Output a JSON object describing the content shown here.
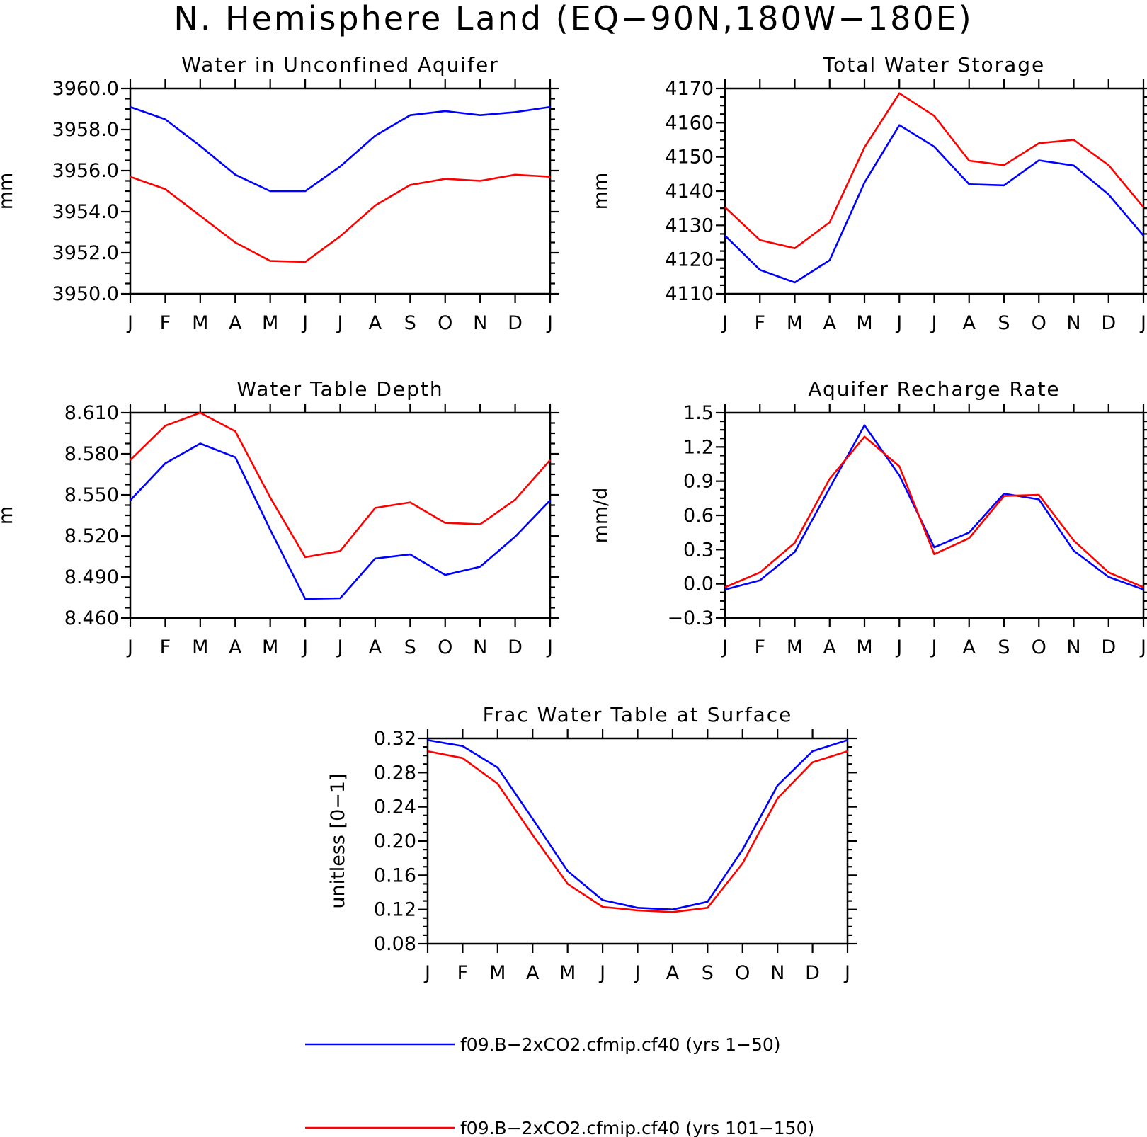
{
  "figure": {
    "title": "N. Hemisphere Land (EQ−90N,180W−180E)"
  },
  "months": [
    "J",
    "F",
    "M",
    "A",
    "M",
    "J",
    "J",
    "A",
    "S",
    "O",
    "N",
    "D",
    "J"
  ],
  "series_styles": [
    {
      "color": "#0000ff"
    },
    {
      "color": "#ff0000"
    }
  ],
  "legend": [
    {
      "label": "f09.B−2xCO2.cfmip.cf40 (yrs 1−50)",
      "color": "#0000ff"
    },
    {
      "label": "f09.B−2xCO2.cfmip.cf40 (yrs 101−150)",
      "color": "#ff0000"
    }
  ],
  "chart_data": [
    {
      "type": "line",
      "title": "Water in Unconfined Aquifer",
      "ylabel": "mm",
      "xlabel": "",
      "categories": [
        "J",
        "F",
        "M",
        "A",
        "M",
        "J",
        "J",
        "A",
        "S",
        "O",
        "N",
        "D",
        "J"
      ],
      "ylim": [
        3950.0,
        3960.0
      ],
      "yticks": [
        3950.0,
        3952.0,
        3954.0,
        3956.0,
        3958.0,
        3960.0
      ],
      "ytick_labels": [
        "3950.0",
        "3952.0",
        "3954.0",
        "3956.0",
        "3958.0",
        "3960.0"
      ],
      "yminor": 0.5,
      "series": [
        {
          "values": [
            3959.1,
            3958.5,
            3957.2,
            3955.8,
            3955.0,
            3955.0,
            3956.2,
            3957.7,
            3958.7,
            3958.9,
            3958.7,
            3958.85,
            3959.1
          ]
        },
        {
          "values": [
            3955.7,
            3955.1,
            3953.8,
            3952.5,
            3951.6,
            3951.55,
            3952.8,
            3954.3,
            3955.3,
            3955.6,
            3955.5,
            3955.8,
            3955.7
          ]
        }
      ]
    },
    {
      "type": "line",
      "title": "Total Water Storage",
      "ylabel": "mm",
      "xlabel": "",
      "categories": [
        "J",
        "F",
        "M",
        "A",
        "M",
        "J",
        "J",
        "A",
        "S",
        "O",
        "N",
        "D",
        "J"
      ],
      "ylim": [
        4110,
        4170
      ],
      "yticks": [
        4110,
        4120,
        4130,
        4140,
        4150,
        4160,
        4170
      ],
      "ytick_labels": [
        "4110",
        "4120",
        "4130",
        "4140",
        "4150",
        "4160",
        "4170"
      ],
      "yminor": 2.5,
      "series": [
        {
          "values": [
            4127,
            4117,
            4113.3,
            4119.8,
            4142.5,
            4159.3,
            4153,
            4142,
            4141.7,
            4149,
            4147.5,
            4139,
            4127
          ]
        },
        {
          "values": [
            4135.3,
            4125.7,
            4123.3,
            4130.9,
            4152.8,
            4168.6,
            4162,
            4148.9,
            4147.6,
            4154,
            4155,
            4147.6,
            4135.3
          ]
        }
      ]
    },
    {
      "type": "line",
      "title": "Water Table Depth",
      "ylabel": "m",
      "xlabel": "",
      "categories": [
        "J",
        "F",
        "M",
        "A",
        "M",
        "J",
        "J",
        "A",
        "S",
        "O",
        "N",
        "D",
        "J"
      ],
      "ylim": [
        8.46,
        8.61
      ],
      "yticks": [
        8.46,
        8.49,
        8.52,
        8.55,
        8.58,
        8.61
      ],
      "ytick_labels": [
        "8.460",
        "8.490",
        "8.520",
        "8.550",
        "8.580",
        "8.610"
      ],
      "yminor": 0.0075,
      "series": [
        {
          "values": [
            8.546,
            8.573,
            8.5875,
            8.5775,
            8.5245,
            8.474,
            8.4745,
            8.5035,
            8.5065,
            8.4915,
            8.4975,
            8.5195,
            8.546
          ]
        },
        {
          "values": [
            8.5755,
            8.6005,
            8.61,
            8.5965,
            8.548,
            8.5045,
            8.509,
            8.5405,
            8.5445,
            8.5295,
            8.5285,
            8.5465,
            8.5755
          ]
        }
      ]
    },
    {
      "type": "line",
      "title": "Aquifer Recharge Rate",
      "ylabel": "mm/d",
      "xlabel": "",
      "categories": [
        "J",
        "F",
        "M",
        "A",
        "M",
        "J",
        "J",
        "A",
        "S",
        "O",
        "N",
        "D",
        "J"
      ],
      "ylim": [
        -0.3,
        1.5
      ],
      "yticks": [
        -0.3,
        0.0,
        0.3,
        0.6,
        0.9,
        1.2,
        1.5
      ],
      "ytick_labels": [
        "−0.3",
        "0.0",
        "0.3",
        "0.6",
        "0.9",
        "1.2",
        "1.5"
      ],
      "yminor": 0.075,
      "series": [
        {
          "values": [
            -0.05,
            0.03,
            0.28,
            0.84,
            1.39,
            0.95,
            0.32,
            0.45,
            0.79,
            0.74,
            0.29,
            0.06,
            -0.05
          ]
        },
        {
          "values": [
            -0.03,
            0.1,
            0.36,
            0.92,
            1.29,
            1.03,
            0.26,
            0.4,
            0.77,
            0.78,
            0.38,
            0.1,
            -0.03
          ]
        }
      ]
    },
    {
      "type": "line",
      "title": "Frac Water Table at Surface",
      "ylabel": "unitless [0−1]",
      "xlabel": "",
      "categories": [
        "J",
        "F",
        "M",
        "A",
        "M",
        "J",
        "J",
        "A",
        "S",
        "O",
        "N",
        "D",
        "J"
      ],
      "ylim": [
        0.08,
        0.32
      ],
      "yticks": [
        0.08,
        0.12,
        0.16,
        0.2,
        0.24,
        0.28,
        0.32
      ],
      "ytick_labels": [
        "0.08",
        "0.12",
        "0.16",
        "0.20",
        "0.24",
        "0.28",
        "0.32"
      ],
      "yminor": 0.01,
      "series": [
        {
          "values": [
            0.318,
            0.311,
            0.286,
            0.226,
            0.165,
            0.131,
            0.122,
            0.12,
            0.129,
            0.19,
            0.265,
            0.305,
            0.318
          ]
        },
        {
          "values": [
            0.305,
            0.297,
            0.267,
            0.207,
            0.15,
            0.123,
            0.119,
            0.117,
            0.122,
            0.174,
            0.25,
            0.292,
            0.305
          ]
        }
      ]
    }
  ]
}
